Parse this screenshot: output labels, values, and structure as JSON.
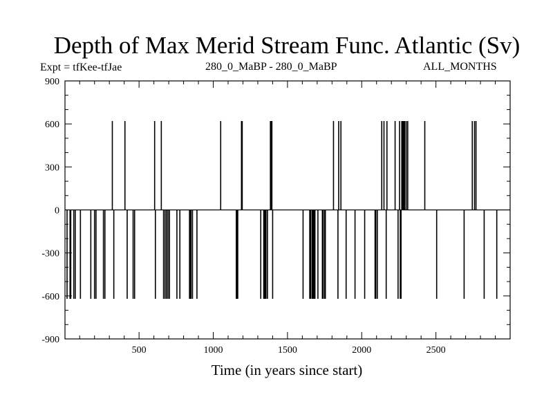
{
  "chart_data": {
    "type": "bar",
    "title": "Depth of Max Merid Stream Func. Atlantic (Sv)",
    "subtitle_left": "Expt = tfKee-tfJae",
    "subtitle_center": "280_0_MaBP - 280_0_MaBP",
    "subtitle_right": "ALL_MONTHS",
    "xlabel": "Time (in years since start)",
    "ylabel": "",
    "xlim": [
      1,
      3000
    ],
    "ylim": [
      -900,
      900
    ],
    "xticks": [
      500,
      1000,
      1500,
      2000,
      2500
    ],
    "yticks": [
      -900,
      -600,
      -300,
      0,
      300,
      600,
      900
    ],
    "grid": false,
    "legend": "none",
    "series": [
      {
        "color": "#000000",
        "x": [
          15,
          35,
          40,
          60,
          70,
          105,
          175,
          200,
          210,
          260,
          270,
          320,
          330,
          405,
          420,
          460,
          470,
          605,
          610,
          650,
          665,
          675,
          685,
          695,
          705,
          755,
          775,
          840,
          845,
          850,
          860,
          890,
          1050,
          1155,
          1160,
          1165,
          1190,
          1195,
          1320,
          1340,
          1345,
          1350,
          1355,
          1365,
          1385,
          1390,
          1395,
          1400,
          1605,
          1650,
          1655,
          1665,
          1670,
          1675,
          1680,
          1685,
          1705,
          1735,
          1740,
          1750,
          1755,
          1810,
          1840,
          1845,
          1860,
          1895,
          1955,
          2020,
          2090,
          2095,
          2105,
          2135,
          2150,
          2165,
          2170,
          2225,
          2245,
          2255,
          2260,
          2265,
          2270,
          2275,
          2280,
          2285,
          2290,
          2300,
          2310,
          2425,
          2505,
          2690,
          2745,
          2760,
          2770,
          2825,
          2910
        ],
        "values": [
          -620,
          -620,
          -620,
          -620,
          -620,
          -620,
          -620,
          -620,
          -620,
          -620,
          -620,
          620,
          -620,
          620,
          -620,
          -620,
          -620,
          620,
          -620,
          620,
          -620,
          -620,
          -620,
          -620,
          -620,
          -620,
          -620,
          -620,
          -620,
          -620,
          -620,
          -620,
          620,
          -620,
          -620,
          -620,
          620,
          620,
          -620,
          -620,
          -620,
          -620,
          -620,
          -620,
          620,
          620,
          620,
          -620,
          -620,
          -620,
          -620,
          -620,
          -620,
          -620,
          -620,
          -620,
          -620,
          -620,
          -620,
          -620,
          -620,
          620,
          -620,
          620,
          620,
          -620,
          -620,
          -620,
          -620,
          -620,
          -620,
          620,
          620,
          -620,
          620,
          620,
          -620,
          620,
          -620,
          -620,
          620,
          620,
          620,
          620,
          620,
          620,
          620,
          620,
          -620,
          -620,
          620,
          620,
          620,
          -620,
          -620
        ]
      }
    ]
  }
}
